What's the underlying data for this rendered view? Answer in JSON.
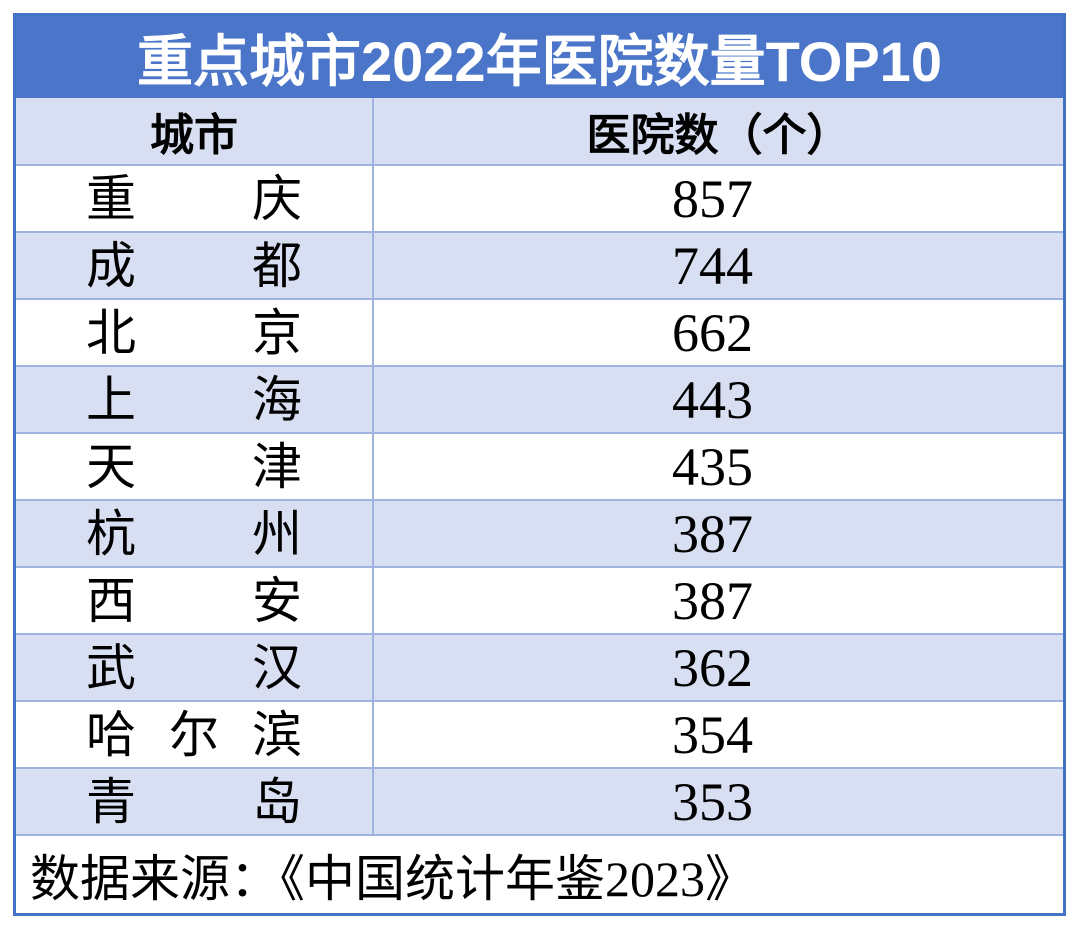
{
  "title": "重点城市2022年医院数量TOP10",
  "columns": {
    "city": "城市",
    "count": "医院数（个）"
  },
  "rows": [
    {
      "city": "重庆",
      "value": "857"
    },
    {
      "city": "成都",
      "value": "744"
    },
    {
      "city": "北京",
      "value": "662"
    },
    {
      "city": "上海",
      "value": "443"
    },
    {
      "city": "天津",
      "value": "435"
    },
    {
      "city": "杭州",
      "value": "387"
    },
    {
      "city": "西安",
      "value": "387"
    },
    {
      "city": "武汉",
      "value": "362"
    },
    {
      "city": "哈尔滨",
      "value": "354"
    },
    {
      "city": "青岛",
      "value": "353"
    }
  ],
  "source": "数据来源：《中国统计年鉴2023》",
  "colors": {
    "title_background": "#4A75C9",
    "header_background": "#D9DFF2",
    "alt_row_background": "#D8DFF2",
    "inner_border": "#9FB3DE",
    "outer_border": "#4472C4",
    "title_text": "#ffffff",
    "body_text": "#000000"
  },
  "chart_data": {
    "type": "table",
    "title": "重点城市2022年医院数量TOP10",
    "columns": [
      "城市",
      "医院数（个）"
    ],
    "rows": [
      [
        "重庆",
        857
      ],
      [
        "成都",
        744
      ],
      [
        "北京",
        662
      ],
      [
        "上海",
        443
      ],
      [
        "天津",
        435
      ],
      [
        "杭州",
        387
      ],
      [
        "西安",
        387
      ],
      [
        "武汉",
        362
      ],
      [
        "哈尔滨",
        354
      ],
      [
        "青岛",
        353
      ]
    ],
    "source": "数据来源：《中国统计年鉴2023》",
    "layout": "title band + 2-column table, alternating row shading, footer source row"
  }
}
